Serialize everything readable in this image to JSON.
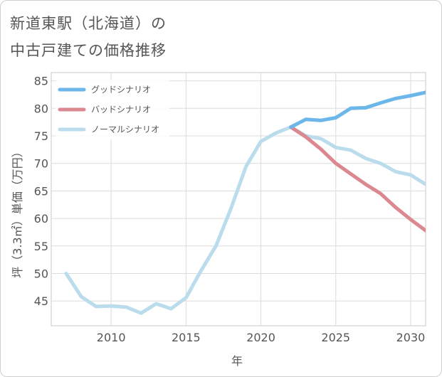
{
  "title": {
    "line1": "新道東駅（北海道）の",
    "line2": "中古戸建ての価格推移"
  },
  "chart_data": {
    "type": "line",
    "title": "新道東駅（北海道）の中古戸建ての価格推移",
    "xlabel": "年",
    "ylabel": "坪（3.3㎡）単価（万円）",
    "xlim": [
      2006,
      2031
    ],
    "ylim": [
      40.5,
      86.5
    ],
    "xticks": [
      2010,
      2015,
      2020,
      2025,
      2030
    ],
    "yticks": [
      45,
      50,
      55,
      60,
      65,
      70,
      75,
      80,
      85
    ],
    "grid": true,
    "legend_position": "top-left",
    "series": [
      {
        "name": "グッドシナリオ",
        "color": "#6cb6ea",
        "x": [
          2022,
          2023,
          2024,
          2025,
          2026,
          2027,
          2028,
          2029,
          2030,
          2031
        ],
        "values": [
          76.6,
          78.0,
          77.8,
          78.3,
          80.0,
          80.1,
          81.0,
          81.8,
          82.3,
          82.9
        ]
      },
      {
        "name": "バッドシナリオ",
        "color": "#db8890",
        "x": [
          2022,
          2023,
          2024,
          2025,
          2026,
          2027,
          2028,
          2029,
          2030,
          2031
        ],
        "values": [
          76.6,
          74.8,
          72.6,
          70.0,
          68.1,
          66.2,
          64.5,
          62.0,
          59.8,
          57.8
        ]
      },
      {
        "name": "ノーマルシナリオ",
        "color": "#badcec",
        "x": [
          2007,
          2008,
          2009,
          2010,
          2011,
          2012,
          2013,
          2014,
          2015,
          2016,
          2017,
          2018,
          2019,
          2020,
          2021,
          2022,
          2023,
          2024,
          2025,
          2026,
          2027,
          2028,
          2029,
          2030,
          2031
        ],
        "values": [
          50.0,
          45.8,
          44.0,
          44.1,
          43.9,
          42.8,
          44.5,
          43.6,
          45.6,
          50.5,
          55.0,
          61.8,
          69.4,
          74.0,
          75.5,
          76.6,
          75.0,
          74.5,
          72.9,
          72.4,
          70.9,
          70.0,
          68.5,
          67.9,
          66.2
        ]
      }
    ]
  }
}
